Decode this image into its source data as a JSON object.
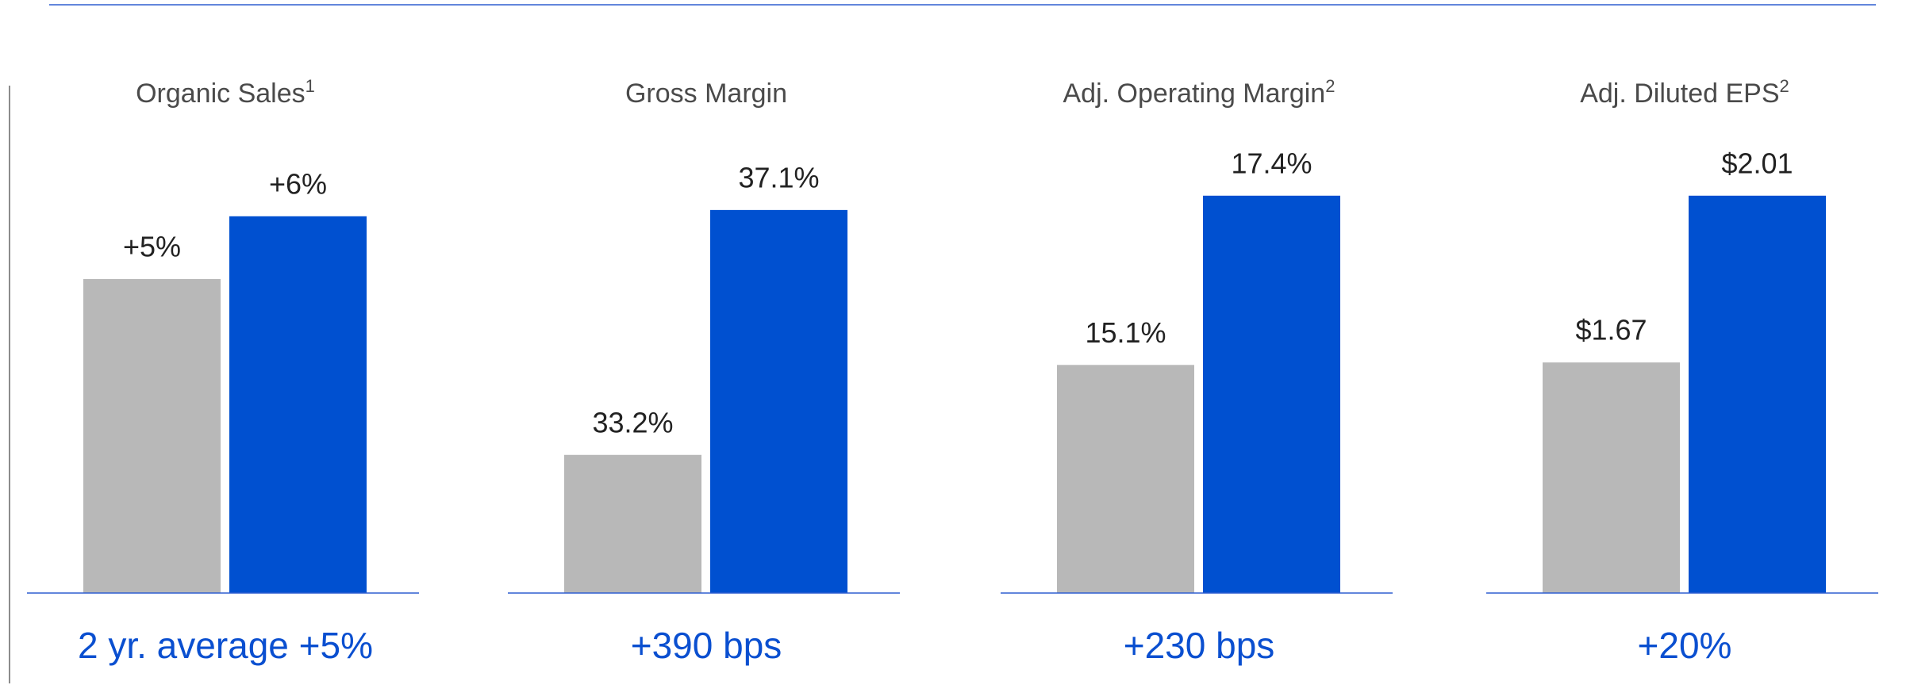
{
  "chart_data": [
    {
      "type": "bar",
      "title": "Organic Sales",
      "title_note": "1",
      "values": [
        5,
        6
      ],
      "value_labels": [
        "+5%",
        "+6%"
      ],
      "colors": [
        "#b8b8b8",
        "#0050d0"
      ],
      "ylim": [
        0,
        7.5
      ],
      "annotation": "2 yr. average +5%"
    },
    {
      "type": "bar",
      "title": "Gross Margin",
      "values": [
        33.2,
        37.1
      ],
      "value_labels": [
        "33.2%",
        "37.1%"
      ],
      "colors": [
        "#b8b8b8",
        "#0050d0"
      ],
      "ylim": [
        31,
        38.5
      ],
      "annotation": "+390 bps"
    },
    {
      "type": "bar",
      "title": "Adj. Operating Margin",
      "title_note": "2",
      "values": [
        15.1,
        17.4
      ],
      "value_labels": [
        "15.1%",
        "17.4%"
      ],
      "colors": [
        "#b8b8b8",
        "#0050d0"
      ],
      "ylim": [
        12,
        18.4
      ],
      "annotation": "+230 bps"
    },
    {
      "type": "bar",
      "title": "Adj. Diluted EPS",
      "title_note": "2",
      "values": [
        1.67,
        2.01
      ],
      "value_labels": [
        "$1.67",
        "$2.01"
      ],
      "colors": [
        "#b8b8b8",
        "#0050d0"
      ],
      "ylim": [
        1.2,
        2.16
      ],
      "annotation": "+20%"
    }
  ]
}
